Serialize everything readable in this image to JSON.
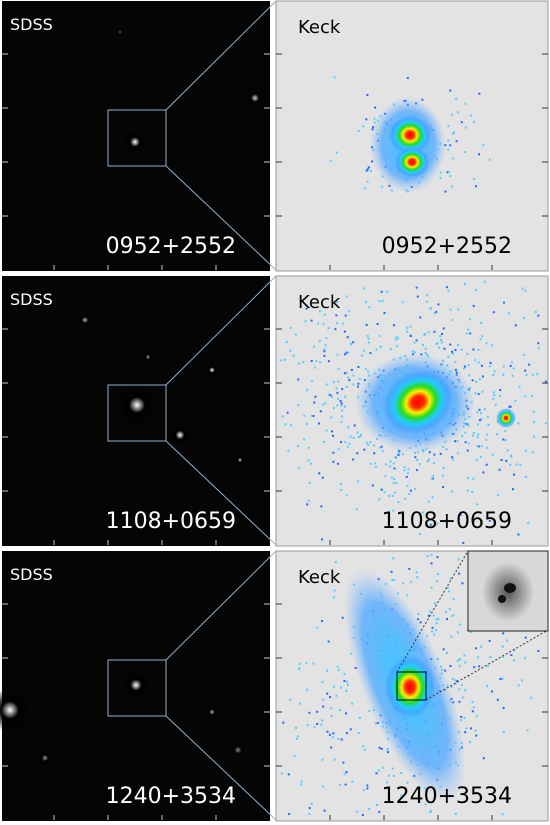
{
  "rows": [
    {
      "left": {
        "label": "SDSS",
        "name": "0952+2552"
      },
      "right": {
        "label": "Keck",
        "name": "0952+2552"
      }
    },
    {
      "left": {
        "label": "SDSS",
        "name": "1108+0659"
      },
      "right": {
        "label": "Keck",
        "name": "1108+0659"
      }
    },
    {
      "left": {
        "label": "SDSS",
        "name": "1240+3534"
      },
      "right": {
        "label": "Keck",
        "name": "1240+3534"
      }
    }
  ]
}
